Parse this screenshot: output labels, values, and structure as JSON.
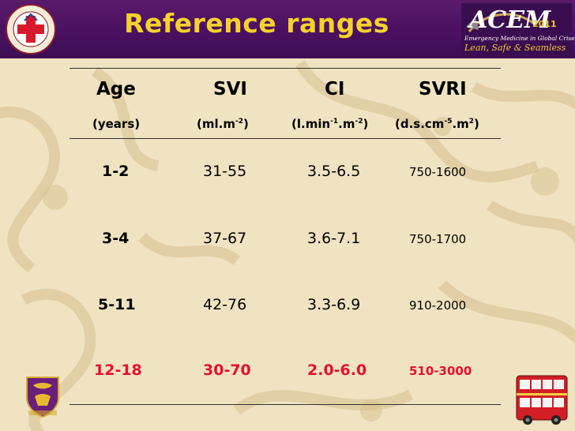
{
  "title": "Reference ranges",
  "logo_right": {
    "name": "ACEM",
    "year": "2011",
    "subtitle": "Emergency Medicine in Global Crises:",
    "tagline": "Lean, Safe & Seamless"
  },
  "table": {
    "columns": [
      {
        "label": "Age",
        "unit": "(years)"
      },
      {
        "label": "SVI",
        "unit_base": "(ml.m",
        "unit_sup": "-2",
        "unit_end": ")"
      },
      {
        "label": "CI",
        "unit_base": "(l.min",
        "unit_sup": "-1",
        "unit_mid": ".m",
        "unit_sup2": "-2",
        "unit_end": ")"
      },
      {
        "label": "SVRI",
        "unit_base": "(d.s.cm",
        "unit_sup": "-5",
        "unit_mid": ".m",
        "unit_sup2": "2",
        "unit_end": ")"
      }
    ],
    "rows": [
      {
        "age": "1-2",
        "svi": "31-55",
        "ci": "3.5-6.5",
        "svri": "750-1600"
      },
      {
        "age": "3-4",
        "svi": "37-67",
        "ci": "3.6-7.1",
        "svri": "750-1700"
      },
      {
        "age": "5-11",
        "svi": "42-76",
        "ci": "3.3-6.9",
        "svri": "910-2000"
      },
      {
        "age": "12-18",
        "svi": "30-70",
        "ci": "2.0-6.0",
        "svri": "510-3000"
      }
    ]
  },
  "colors": {
    "header_bg": "#4a1160",
    "title": "#f6d22a",
    "highlight_row": "#e8102c",
    "background": "#efe3c2"
  }
}
